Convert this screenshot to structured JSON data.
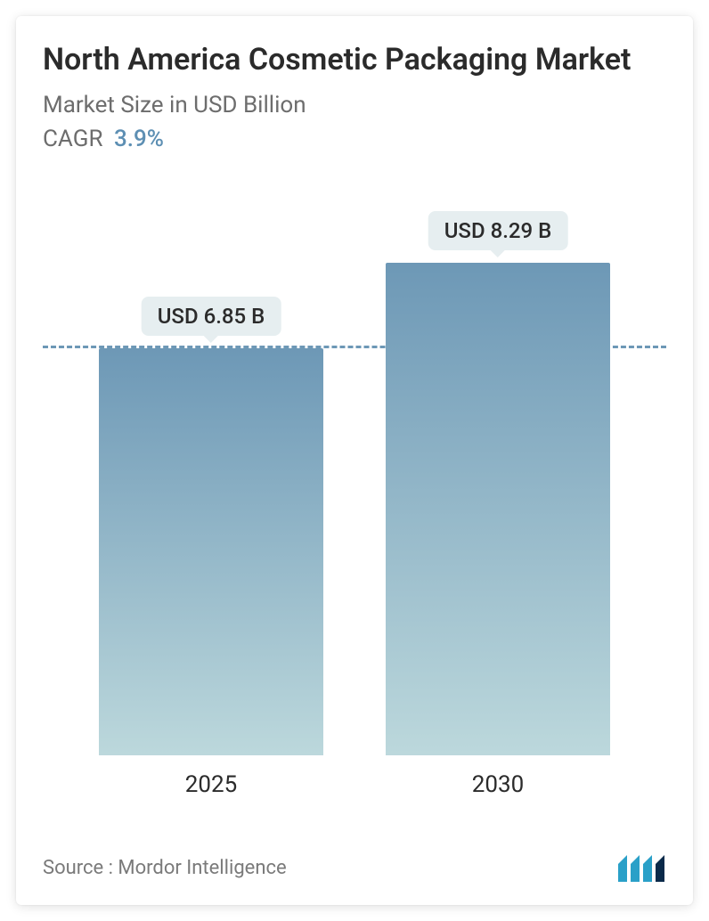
{
  "header": {
    "title": "North America Cosmetic Packaging Market",
    "title_fontsize": 34,
    "title_color": "#2b2b2b",
    "subtitle": "Market Size in USD Billion",
    "subtitle_fontsize": 26,
    "subtitle_color": "#6d6d6d",
    "cagr_label": "CAGR",
    "cagr_value": "3.9%",
    "cagr_fontsize": 26,
    "cagr_value_color": "#5d8fb3"
  },
  "chart": {
    "type": "bar",
    "background_color": "#ffffff",
    "y_max": 9.0,
    "reference_line_value": 6.85,
    "reference_line_color": "#6d98b6",
    "reference_line_dash": "10,8",
    "bar_width_pct": 36,
    "bar_gap_pct": 10,
    "bar_gradient_top": "#6d98b6",
    "bar_gradient_bottom": "#bcd8dc",
    "badge_bg": "#e6eef0",
    "badge_text_color": "#2b2b2b",
    "badge_fontsize": 24,
    "xlabel_fontsize": 26,
    "xlabel_color": "#2b2b2b",
    "bars": [
      {
        "category": "2025",
        "value": 6.85,
        "value_label": "USD 6.85 B"
      },
      {
        "category": "2030",
        "value": 8.29,
        "value_label": "USD 8.29 B"
      }
    ]
  },
  "footer": {
    "source_text": "Source :  Mordor Intelligence",
    "source_fontsize": 22,
    "source_color": "#7a7a7a",
    "logo_primary": "#2aa0c8",
    "logo_secondary": "#0a2a4a"
  }
}
